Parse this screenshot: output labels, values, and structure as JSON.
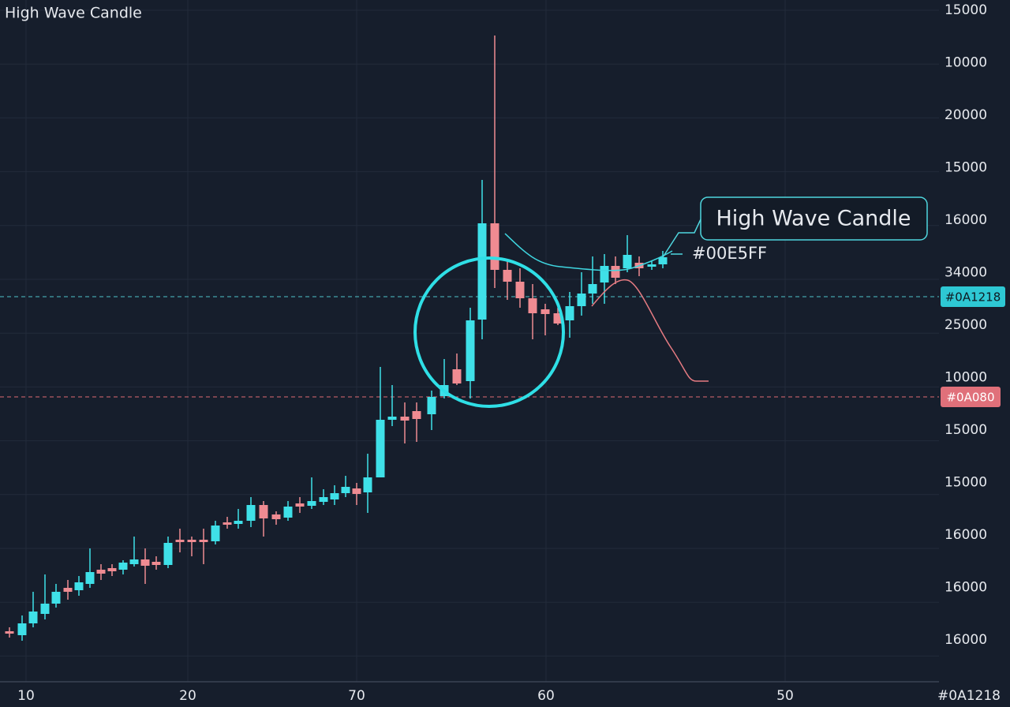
{
  "title": "High Wave Candle",
  "y_axis_labels": [
    15000,
    10000,
    20000,
    15000,
    16000,
    34000,
    25000,
    10000,
    15000,
    15000,
    16000,
    16000,
    16000
  ],
  "x_axis_labels": [
    10,
    20,
    70,
    60,
    50,
    "#0A1218"
  ],
  "price_tags": [
    "#0A1218",
    "#0A080"
  ],
  "annotation": {
    "label": "High Wave Candle",
    "note": "#00E5FF"
  }
}
